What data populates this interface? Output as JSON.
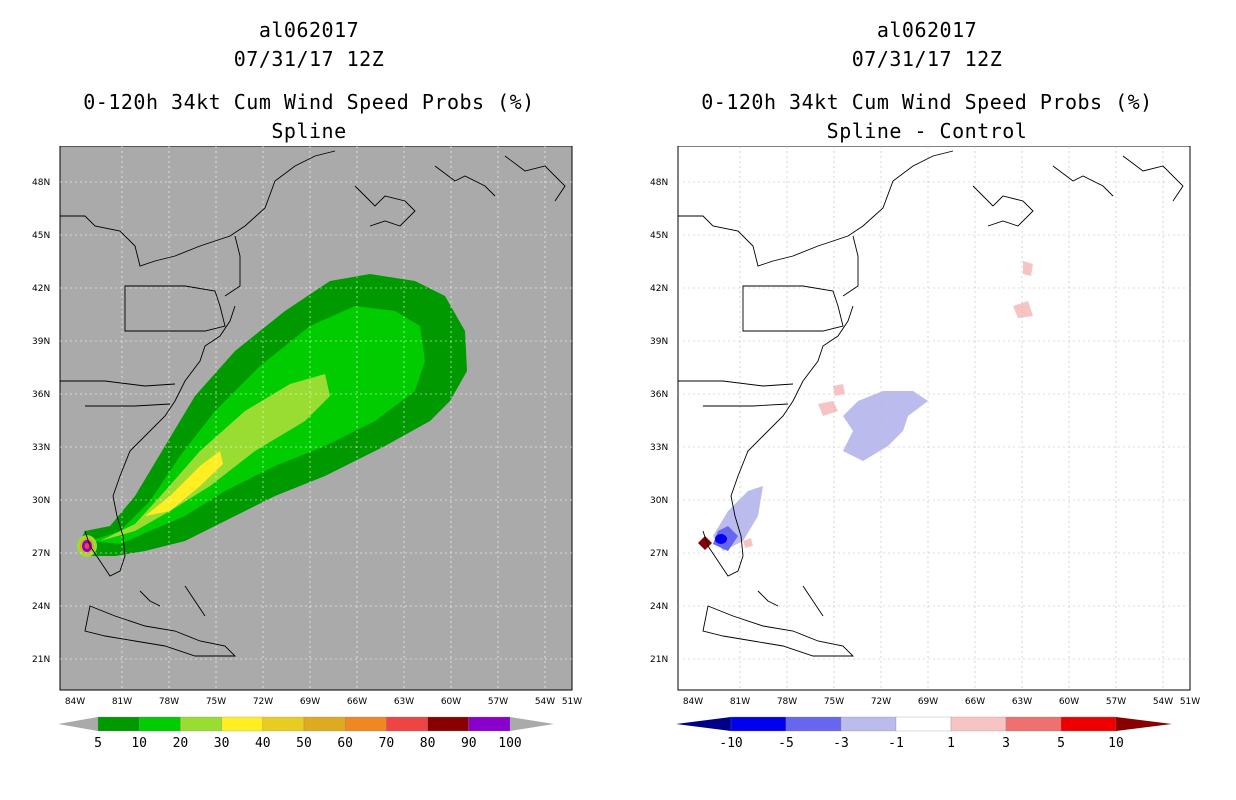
{
  "left": {
    "storm_id": "al062017",
    "datetime": "07/31/17 12Z",
    "product": "0-120h 34kt Cum Wind Speed Probs (%)",
    "subtitle": "Spline",
    "colorbar_labels": [
      "5",
      "10",
      "20",
      "30",
      "40",
      "50",
      "60",
      "70",
      "80",
      "90",
      "100"
    ],
    "colorbar_colors": [
      "#009900",
      "#00cc00",
      "#99dd33",
      "#ffee22",
      "#e8cc22",
      "#ddaa22",
      "#ee8822",
      "#ee4444",
      "#880000",
      "#8800cc"
    ]
  },
  "right": {
    "storm_id": "al062017",
    "datetime": "07/31/17 12Z",
    "product": "0-120h 34kt Cum Wind Speed Probs (%)",
    "subtitle": "Spline - Control",
    "colorbar_labels": [
      "-10",
      "-5",
      "-3",
      "-1",
      "1",
      "3",
      "5",
      "10"
    ],
    "colorbar_colors": [
      "#0000ee",
      "#6666ee",
      "#bbbbee",
      "#ffffff",
      "#f7c4c4",
      "#f07070",
      "#ee0000"
    ]
  },
  "axes": {
    "lat_labels": [
      "48N",
      "45N",
      "42N",
      "39N",
      "36N",
      "33N",
      "30N",
      "27N",
      "24N",
      "21N"
    ],
    "lon_labels": [
      "84W",
      "81W",
      "78W",
      "75W",
      "72W",
      "69W",
      "66W",
      "63W",
      "60W",
      "57W",
      "54W",
      "51W"
    ]
  },
  "colors": {
    "ocean_left": "#aaaaaa",
    "ocean_right": "#ffffff",
    "coast": "#000000"
  }
}
